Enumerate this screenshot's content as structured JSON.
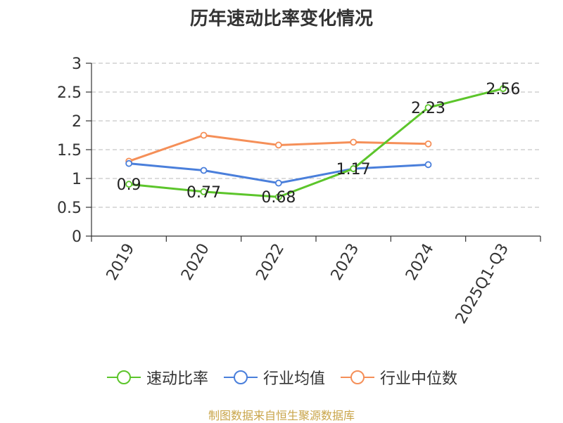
{
  "chart_data": {
    "type": "line",
    "title": "历年速动比率变化情况",
    "categories": [
      "2019",
      "2020",
      "2022",
      "2023",
      "2024",
      "2025Q1-Q3"
    ],
    "ylim": [
      0,
      3
    ],
    "yticks": [
      "0",
      "0.5",
      "1",
      "1.5",
      "2",
      "2.5",
      "3"
    ],
    "grid": true,
    "legend_position": "bottom",
    "series": [
      {
        "name": "速动比率",
        "color": "#5cc52b",
        "values": [
          0.9,
          0.77,
          0.68,
          1.17,
          2.23,
          2.56
        ],
        "labels": [
          "0.9",
          "0.77",
          "0.68",
          "1.17",
          "2.23",
          "2.56"
        ]
      },
      {
        "name": "行业均值",
        "color": "#4a7fdb",
        "values": [
          1.26,
          1.14,
          0.92,
          1.17,
          1.24,
          null
        ]
      },
      {
        "name": "行业中位数",
        "color": "#f58f58",
        "values": [
          1.3,
          1.75,
          1.58,
          1.63,
          1.6,
          null
        ]
      }
    ]
  },
  "source": "制图数据来自恒生聚源数据库"
}
